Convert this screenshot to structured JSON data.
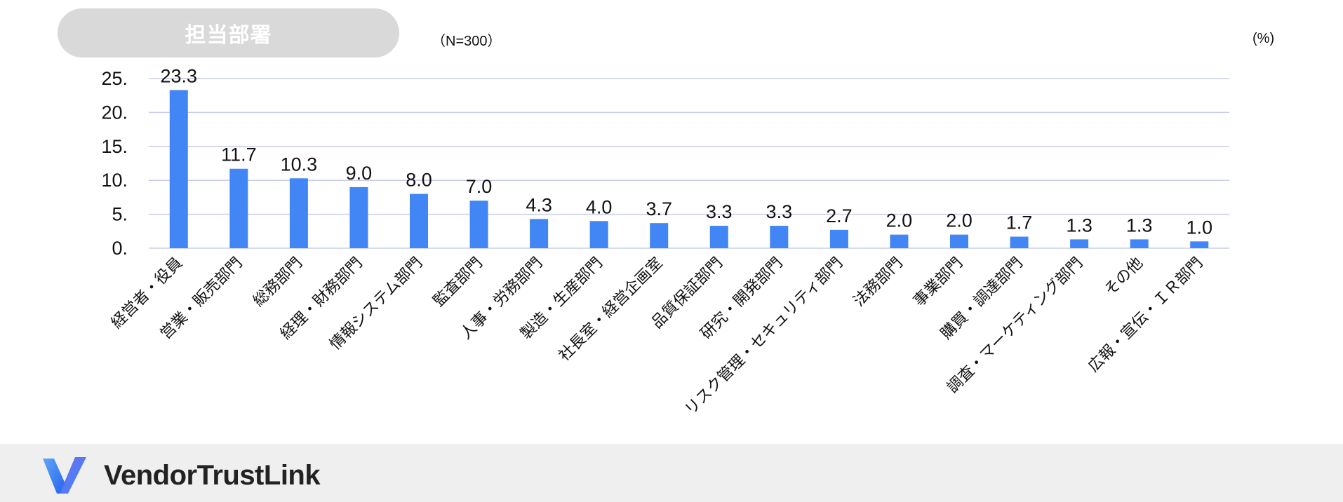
{
  "header": {
    "title": "担当部署",
    "sample_size": "（N=300）",
    "unit": "(%)"
  },
  "chart_data": {
    "type": "bar",
    "title": "担当部署",
    "xlabel": "",
    "ylabel": "",
    "ylim": [
      0,
      25
    ],
    "yticks": [
      0,
      5,
      10,
      15,
      20,
      25
    ],
    "ytick_labels": [
      "0.",
      "5.",
      "10.",
      "15.",
      "20.",
      "25."
    ],
    "grid": true,
    "bar_color": "#4285f4",
    "grid_color": "#c9cde8",
    "categories": [
      "経営者・役員",
      "営業・販売部門",
      "総務部門",
      "経理・財務部門",
      "情報システム部門",
      "監査部門",
      "人事・労務部門",
      "製造・生産部門",
      "社長室・経営企画室",
      "品質保証部門",
      "研究・開発部門",
      "リスク管理・セキュリティ部門",
      "法務部門",
      "事業部門",
      "購買・調達部門",
      "調査・マーケティング部門",
      "その他",
      "広報・宣伝・ＩＲ部門"
    ],
    "values": [
      23.3,
      11.7,
      10.3,
      9.0,
      8.0,
      7.0,
      4.3,
      4.0,
      3.7,
      3.3,
      3.3,
      2.7,
      2.0,
      2.0,
      1.7,
      1.3,
      1.3,
      1.0
    ],
    "value_labels": [
      "23.3",
      "11.7",
      "10.3",
      "9.0",
      "8.0",
      "7.0",
      "4.3",
      "4.0",
      "3.7",
      "3.3",
      "3.3",
      "2.7",
      "2.0",
      "2.0",
      "1.7",
      "1.3",
      "1.3",
      "1.0"
    ]
  },
  "footer": {
    "brand": "VendorTrustLink",
    "logo_icon": "vendortrustlink-v-logo-icon",
    "logo_colors": [
      "#3b82f6",
      "#7c3aed"
    ],
    "background": "#efefef"
  }
}
